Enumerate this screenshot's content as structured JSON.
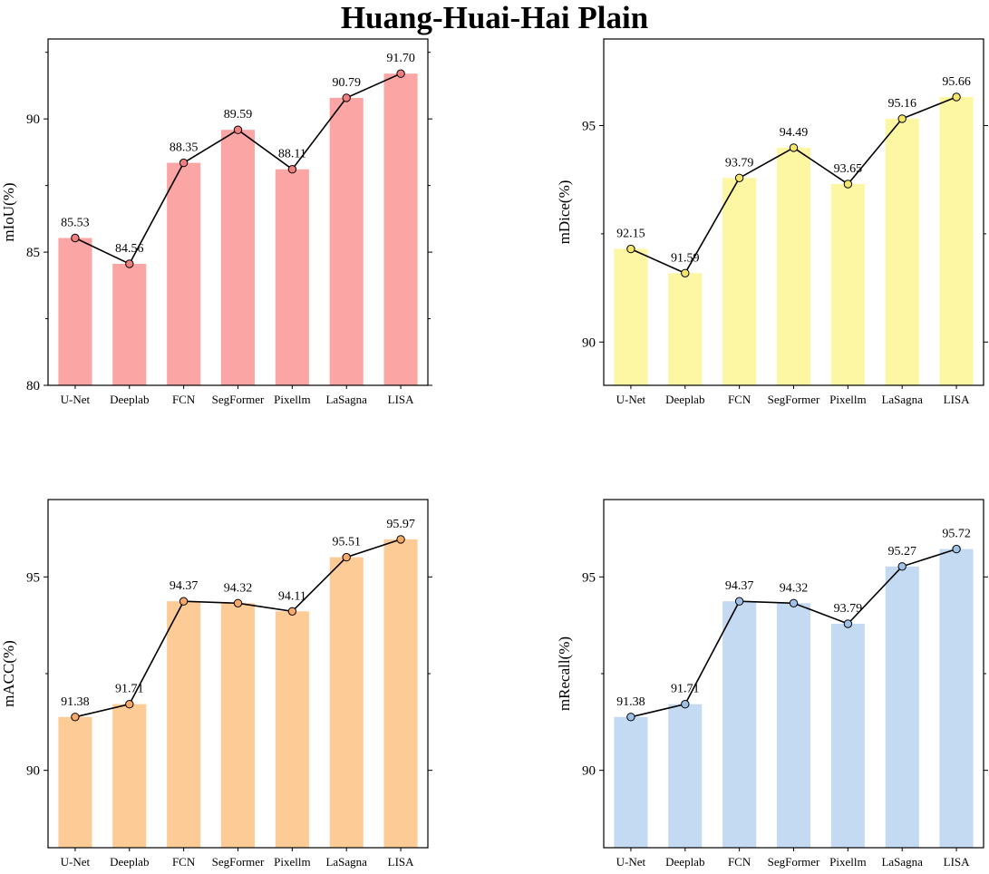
{
  "title": "Huang-Huai-Hai Plain",
  "chart_data": [
    {
      "type": "bar",
      "categories": [
        "U-Net",
        "Deeplab",
        "FCN",
        "SegFormer",
        "Pixellm",
        "LaSagna",
        "LISA"
      ],
      "values": [
        85.53,
        84.56,
        88.35,
        89.59,
        88.11,
        90.79,
        91.7
      ],
      "value_labels": [
        "85.53",
        "84.56",
        "88.35",
        "89.59",
        "88.11",
        "90.79",
        "91.70"
      ],
      "ylabel": "mIoU(%)",
      "ylim": [
        80,
        93
      ],
      "yticks": [
        80,
        85,
        90
      ],
      "overlay": "line with circle markers",
      "colors": {
        "bar": "#fca5a5",
        "marker": "#f08080"
      }
    },
    {
      "type": "bar",
      "categories": [
        "U-Net",
        "Deeplab",
        "FCN",
        "SegFormer",
        "Pixellm",
        "LaSagna",
        "LISA"
      ],
      "values": [
        92.15,
        91.59,
        93.79,
        94.49,
        93.65,
        95.16,
        95.66
      ],
      "value_labels": [
        "92.15",
        "91.59",
        "93.79",
        "94.49",
        "93.65",
        "95.16",
        "95.66"
      ],
      "ylabel": "mDice(%)",
      "ylim": [
        89,
        97
      ],
      "yticks": [
        90,
        95
      ],
      "overlay": "line with circle markers",
      "colors": {
        "bar": "#fdf6a3",
        "marker": "#f5e56b"
      }
    },
    {
      "type": "bar",
      "categories": [
        "U-Net",
        "Deeplab",
        "FCN",
        "SegFormer",
        "Pixellm",
        "LaSagna",
        "LISA"
      ],
      "values": [
        91.38,
        91.71,
        94.37,
        94.32,
        94.11,
        95.51,
        95.97
      ],
      "value_labels": [
        "91.38",
        "91.71",
        "94.37",
        "94.32",
        "94.11",
        "95.51",
        "95.97"
      ],
      "ylabel": "mACC(%)",
      "ylim": [
        88,
        97
      ],
      "yticks": [
        90,
        95
      ],
      "overlay": "line with circle markers",
      "colors": {
        "bar": "#fdcb95",
        "marker": "#f7a96a"
      }
    },
    {
      "type": "bar",
      "categories": [
        "U-Net",
        "Deeplab",
        "FCN",
        "SegFormer",
        "Pixellm",
        "LaSagna",
        "LISA"
      ],
      "values": [
        91.38,
        91.71,
        94.37,
        94.32,
        93.79,
        95.27,
        95.72
      ],
      "value_labels": [
        "91.38",
        "91.71",
        "94.37",
        "94.32",
        "93.79",
        "95.27",
        "95.72"
      ],
      "ylabel": "mRecall(%)",
      "ylim": [
        88,
        97
      ],
      "yticks": [
        90,
        95
      ],
      "overlay": "line with circle markers",
      "colors": {
        "bar": "#c4daf2",
        "marker": "#9fc1e8"
      }
    }
  ]
}
